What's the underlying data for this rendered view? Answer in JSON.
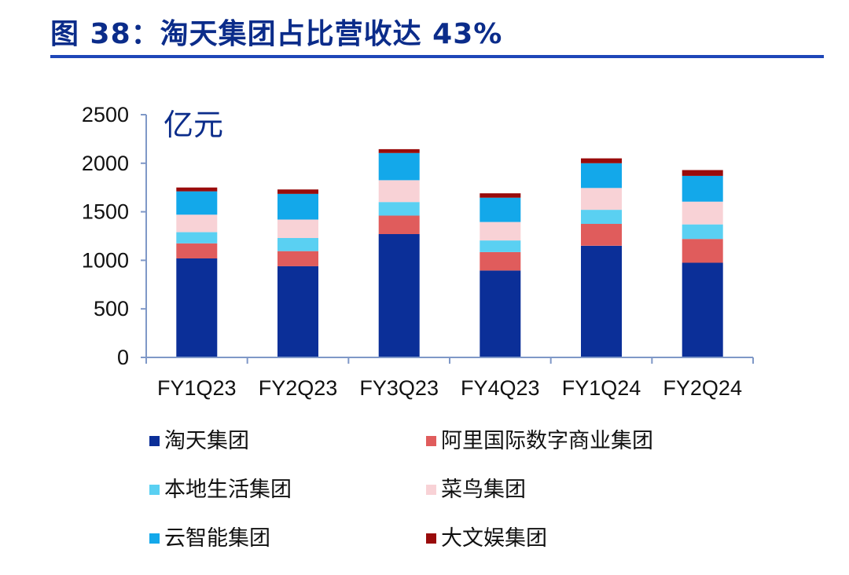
{
  "header": {
    "title": "图 38：淘天集团占比营收达 43%"
  },
  "colors": {
    "title": "#0b2c8a",
    "rule": "#1e47b8",
    "axis": "#7f98c7",
    "series": [
      "#0b2f98",
      "#e05c5c",
      "#5ad0f2",
      "#f8d2d6",
      "#13a8ea",
      "#990b0b"
    ]
  },
  "chart_data": {
    "type": "bar",
    "stacked": true,
    "title": "",
    "ylabel": "亿元",
    "xlabel": "",
    "ylim": [
      0,
      2500
    ],
    "yticks": [
      0,
      500,
      1000,
      1500,
      2000,
      2500
    ],
    "categories": [
      "FY1Q23",
      "FY2Q23",
      "FY3Q23",
      "FY4Q23",
      "FY1Q24",
      "FY2Q24"
    ],
    "series": [
      {
        "name": "淘天集团",
        "values": [
          1020,
          940,
          1270,
          895,
          1150,
          975
        ]
      },
      {
        "name": "阿里国际数字商业集团",
        "values": [
          155,
          155,
          190,
          190,
          225,
          245
        ]
      },
      {
        "name": "本地生活集团",
        "values": [
          115,
          135,
          140,
          120,
          145,
          150
        ]
      },
      {
        "name": "菜鸟集团",
        "values": [
          180,
          190,
          225,
          190,
          225,
          235
        ]
      },
      {
        "name": "云智能集团",
        "values": [
          240,
          265,
          280,
          250,
          255,
          265
        ]
      },
      {
        "name": "大文娱集团",
        "values": [
          40,
          45,
          40,
          45,
          50,
          60
        ]
      }
    ],
    "legend": [
      "淘天集团",
      "阿里国际数字商业集团",
      "本地生活集团",
      "菜鸟集团",
      "云智能集团",
      "大文娱集团"
    ]
  }
}
